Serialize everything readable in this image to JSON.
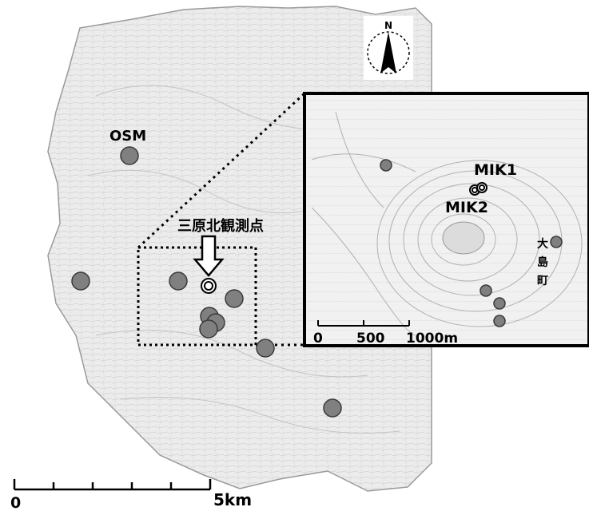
{
  "labels": {
    "osm": "OSM",
    "mihara_kita": "三原北観測点",
    "mik1": "MIK1",
    "mik2": "MIK2",
    "oshima_machi": [
      "大",
      "島",
      "町"
    ]
  },
  "scale_main": {
    "zero": "0",
    "end": "5km"
  },
  "scale_inset": {
    "zero": "0",
    "mid": "500",
    "end": "1000m"
  },
  "north": {
    "letter": "N",
    "icon": "north-arrow-icon"
  },
  "colors": {
    "station": "#808080",
    "station_stroke": "#3a3a3a",
    "land": "#ebebeb",
    "contour": "#b5b5b5",
    "frame": "#000000"
  }
}
